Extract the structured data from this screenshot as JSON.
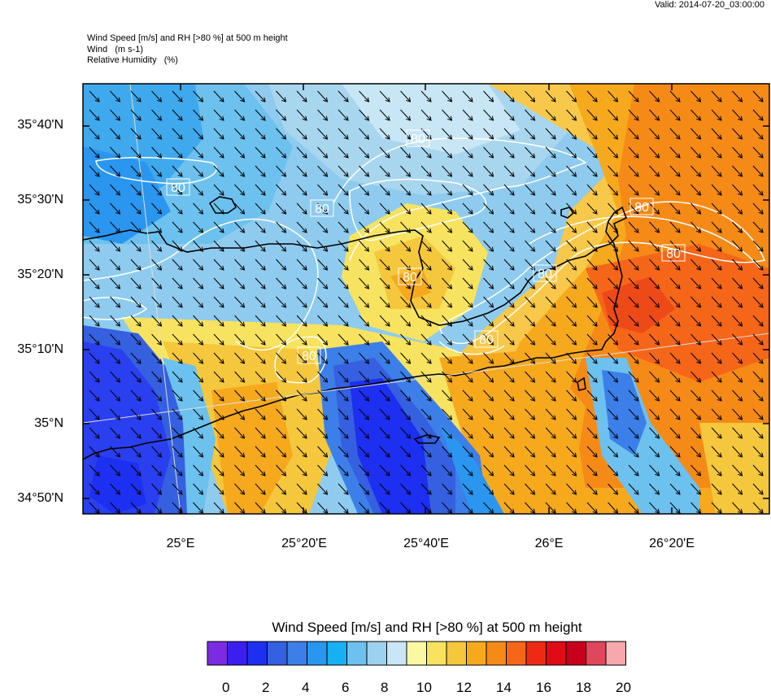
{
  "valid": "Valid: 2014-07-20_03:00:00",
  "titles": {
    "main": "Wind Speed [m/s] and RH [>80 %] at 500 m height",
    "wind": "Wind   (m s-1)",
    "rh": "Relative Humidity   (%)"
  },
  "map": {
    "lat_labels": [
      "35°40'N",
      "35°30'N",
      "35°20'N",
      "35°10'N",
      "35°N",
      "34°50'N"
    ],
    "lon_labels": [
      "25°E",
      "25°20'E",
      "25°40'E",
      "26°E",
      "26°20'E"
    ],
    "contour_labels": [
      "80",
      "80",
      "80",
      "80",
      "80",
      "80",
      "80",
      "80",
      "80"
    ],
    "wind_direction": "northwest"
  },
  "colorbar": {
    "title": "Wind Speed [m/s] and RH [>80 %] at 500 m height",
    "labels": [
      "0",
      "2",
      "4",
      "6",
      "8",
      "10",
      "12",
      "14",
      "16",
      "18",
      "20"
    ],
    "colors": [
      "#7b2be0",
      "#3d1ef0",
      "#1d2ff0",
      "#3560e0",
      "#3c7fe8",
      "#2a96ef",
      "#16b0f3",
      "#6cc1ee",
      "#9dd2ee",
      "#c8e6f5",
      "#fbf8a4",
      "#f7e35f",
      "#f5c73c",
      "#f6a91d",
      "#f68a16",
      "#f66619",
      "#ee2a14",
      "#e00b16",
      "#c8001c",
      "#e0465c",
      "#f7a8ac"
    ]
  }
}
